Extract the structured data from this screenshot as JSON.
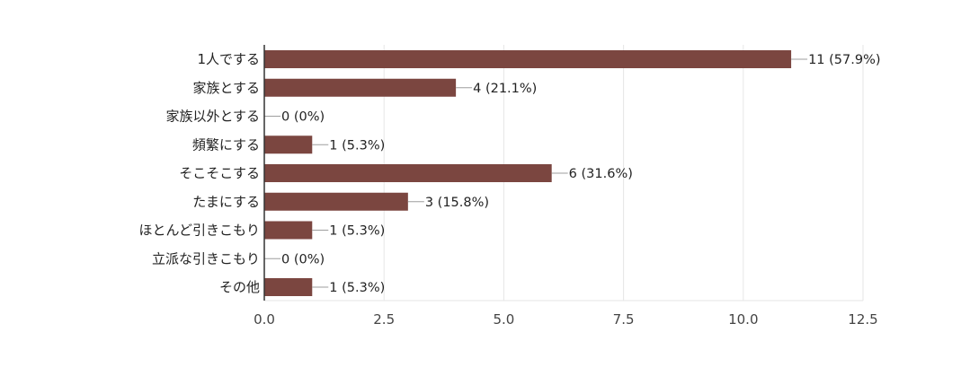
{
  "chart_data": {
    "type": "bar",
    "orientation": "horizontal",
    "categories": [
      "1人でする",
      "家族とする",
      "家族以外とする",
      "頻繁にする",
      "そこそこする",
      "たまにする",
      "ほとんど引きこもり",
      "立派な引きこもり",
      "その他"
    ],
    "values": [
      11,
      4,
      0,
      1,
      6,
      3,
      1,
      0,
      1
    ],
    "data_labels": [
      "11 (57.9%)",
      "4 (21.1%)",
      "0 (0%)",
      "1 (5.3%)",
      "6 (31.6%)",
      "3 (15.8%)",
      "1 (5.3%)",
      "0 (0%)",
      "1 (5.3%)"
    ],
    "x_ticks": [
      "0.0",
      "2.5",
      "5.0",
      "7.5",
      "10.0",
      "12.5"
    ],
    "xlim": [
      0,
      12.5
    ],
    "title": "",
    "xlabel": "",
    "ylabel": "",
    "grid": true,
    "legend": "none",
    "colors": {
      "bar": "#7b4640",
      "grid": "#e6e6e6",
      "axis": "#333333",
      "leader": "#9e9e9e"
    }
  }
}
